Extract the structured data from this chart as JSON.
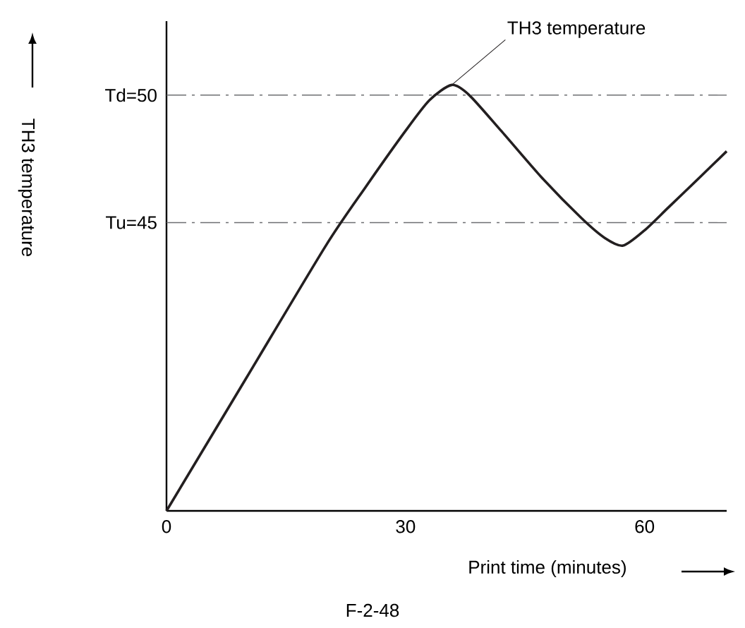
{
  "chart_data": {
    "type": "line",
    "xlabel": "Print time (minutes)",
    "ylabel": "TH3 temperature",
    "x": [
      0,
      10,
      20,
      25,
      30,
      33,
      35.8,
      38,
      42,
      47,
      52,
      55,
      57.3,
      60,
      63,
      67,
      70.3
    ],
    "values": [
      33.7,
      38.9,
      44.1,
      46.4,
      48.6,
      49.8,
      50.4,
      50,
      48.6,
      46.8,
      45.2,
      44.4,
      44.1,
      44.7,
      45.6,
      46.8,
      47.8
    ],
    "color": "#231f20",
    "xlim": [
      0,
      70.3
    ],
    "ylim": [
      33.7,
      52.9
    ],
    "xticks": [
      0,
      30,
      60
    ],
    "yticks": [
      {
        "value": 50,
        "label": "Td=50"
      },
      {
        "value": 45,
        "label": "Tu=45"
      }
    ],
    "ref_lines": [
      {
        "axis": "y",
        "value": 50,
        "color": "#6d6e71",
        "line_style": "dashdot"
      },
      {
        "axis": "y",
        "value": 45,
        "color": "#6d6e71",
        "line_style": "dashdot"
      }
    ],
    "annotations": [
      {
        "text": "TH3 temperature",
        "x": 35.8,
        "y": 50.4
      },
      "F-2-48"
    ],
    "grid": false,
    "marker": "none",
    "line_style": "solid"
  }
}
